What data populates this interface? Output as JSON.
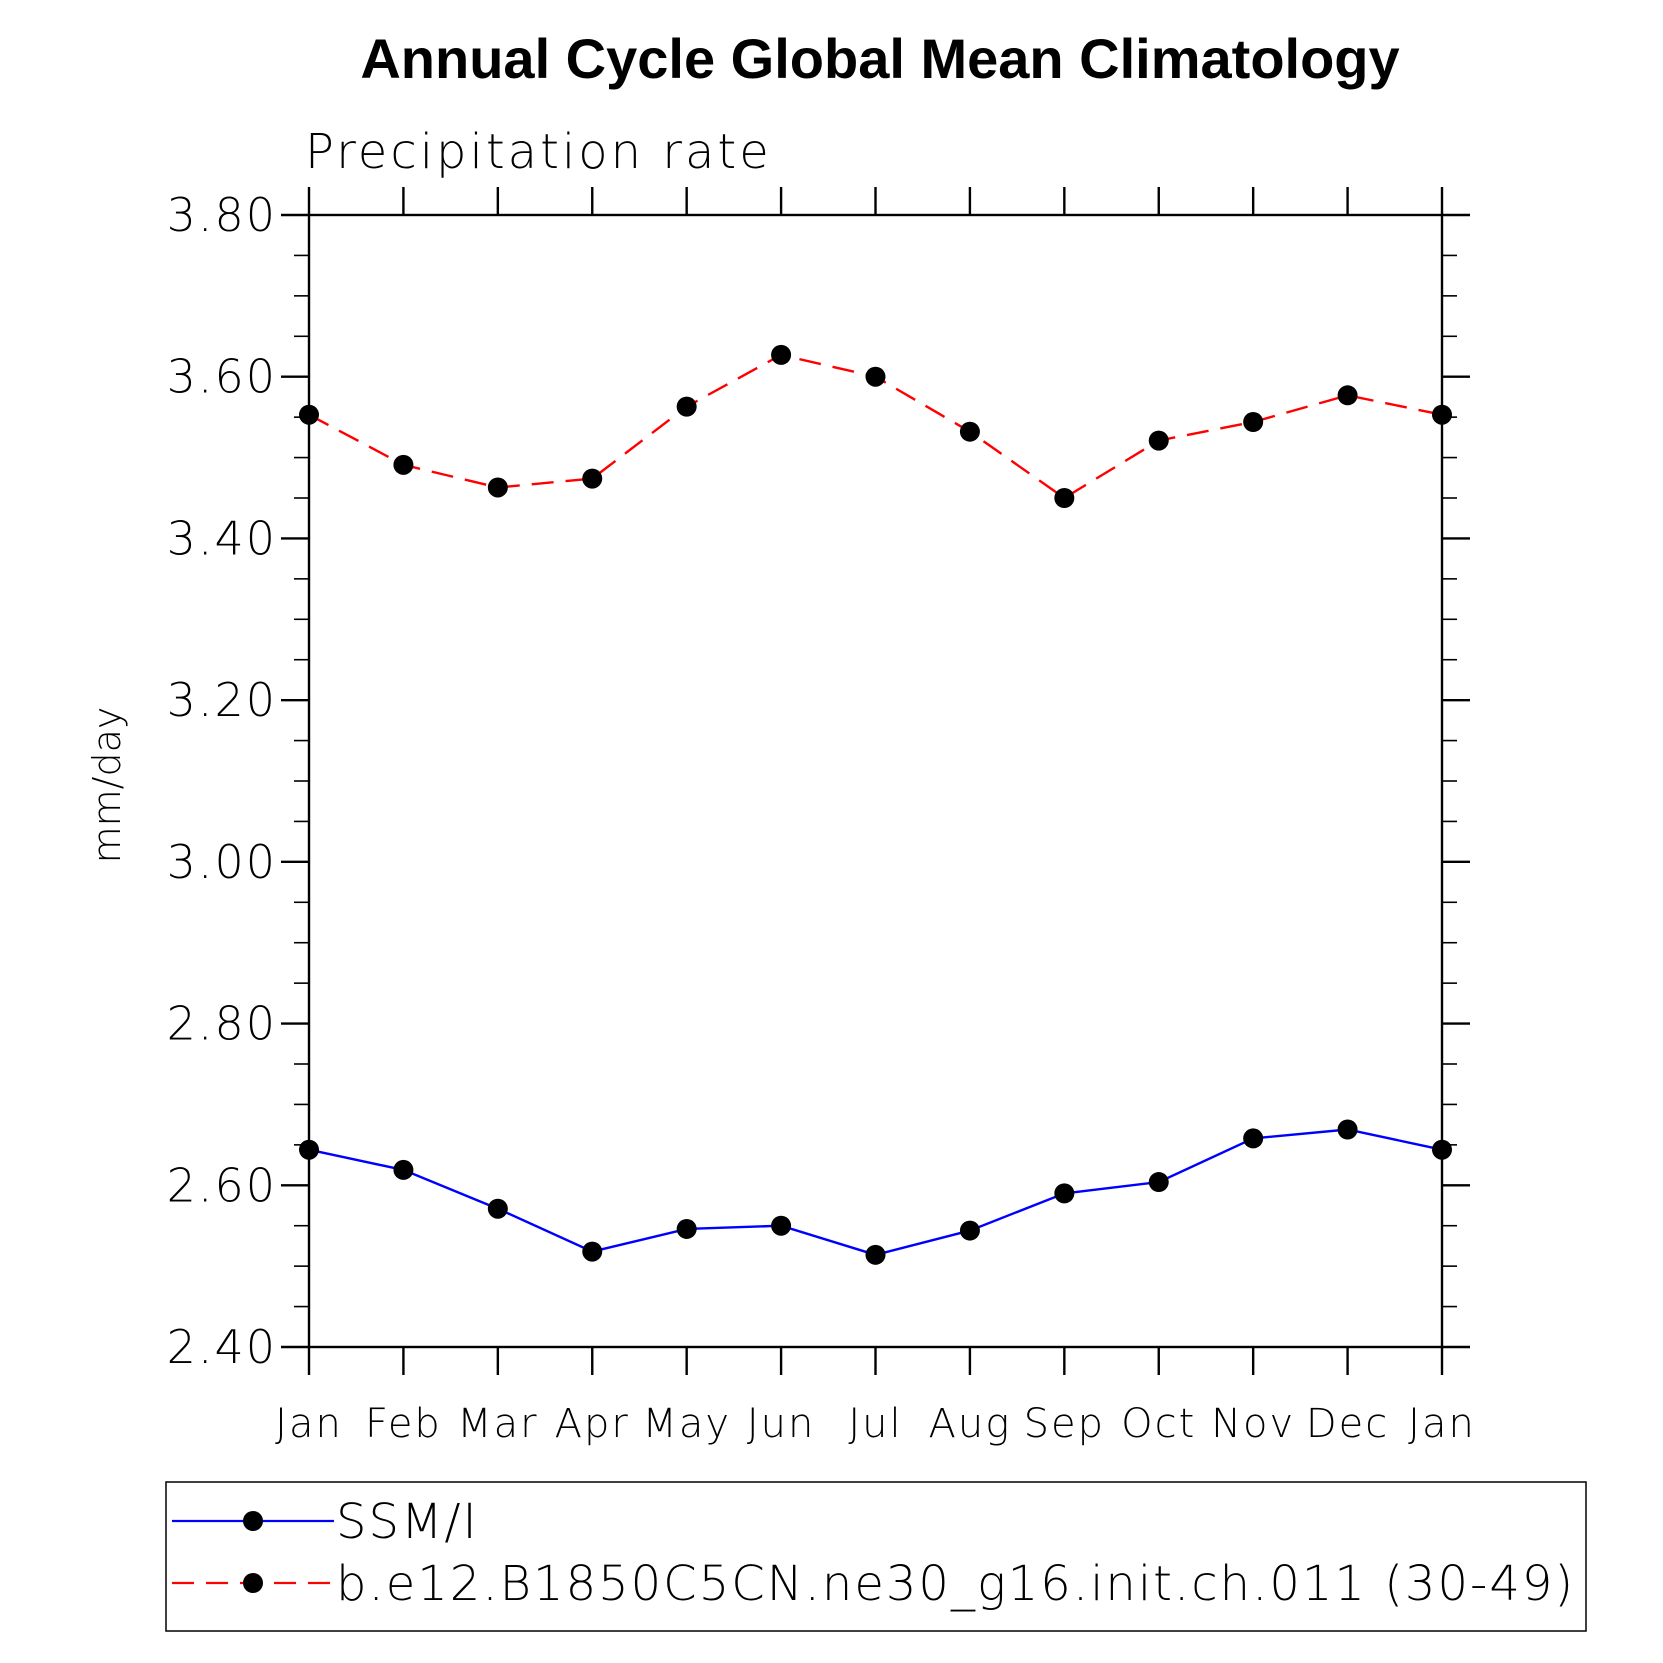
{
  "chart_data": {
    "type": "line",
    "title": "Annual Cycle Global Mean Climatology",
    "subtitle": "Precipitation rate",
    "xlabel": "",
    "ylabel": "mm/day",
    "categories": [
      "Jan",
      "Feb",
      "Mar",
      "Apr",
      "May",
      "Jun",
      "Jul",
      "Aug",
      "Sep",
      "Oct",
      "Nov",
      "Dec",
      "Jan"
    ],
    "ylim": [
      2.4,
      3.8
    ],
    "yticks": [
      2.4,
      2.6,
      2.8,
      3.0,
      3.2,
      3.4,
      3.6,
      3.8
    ],
    "ytick_labels": [
      "2.40",
      "2.60",
      "2.80",
      "3.00",
      "3.20",
      "3.40",
      "3.60",
      "3.80"
    ],
    "yminor_step": 0.05,
    "grid": false,
    "legend_position": "bottom",
    "series": [
      {
        "name": "SSM/I",
        "color": "#0000ff",
        "line_style": "solid",
        "marker": "filled-circle",
        "values": [
          2.644,
          2.619,
          2.571,
          2.518,
          2.546,
          2.55,
          2.514,
          2.544,
          2.59,
          2.604,
          2.658,
          2.669,
          2.644
        ]
      },
      {
        "name": "b.e12.B1850C5CN.ne30_g16.init.ch.011 (30-49)",
        "color": "#ff0000",
        "line_style": "dashed",
        "marker": "filled-circle",
        "values": [
          3.553,
          3.491,
          3.463,
          3.474,
          3.563,
          3.627,
          3.6,
          3.532,
          3.45,
          3.521,
          3.544,
          3.577,
          3.553
        ]
      }
    ]
  }
}
